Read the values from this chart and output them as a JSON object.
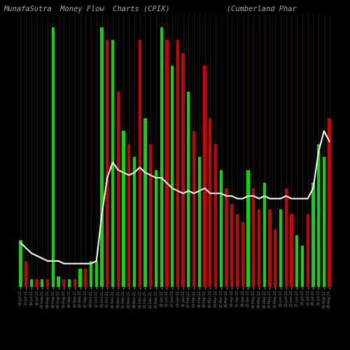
{
  "title": "MunafaSutra  Money Flow  Charts (CPIX)             (Cumberland Phar",
  "background_color": "#000000",
  "title_color": "#aaaaaa",
  "title_fontsize": 7.5,
  "line_color": "#ffffff",
  "green_color": "#00dd00",
  "red_color": "#cc0000",
  "grid_color": "#5a3a00",
  "x_labels": [
    "05-Jul-21",
    "12-Jul-21",
    "19-Jul-21",
    "26-Jul-21",
    "02-Aug-21",
    "09-Aug-21",
    "16-Aug-21",
    "23-Aug-21",
    "30-Aug-21",
    "06-Sep-21",
    "13-Sep-21",
    "20-Sep-21",
    "27-Sep-21",
    "04-Oct-21",
    "11-Oct-21",
    "18-Oct-21",
    "25-Oct-21",
    "01-Nov-21",
    "08-Nov-21",
    "15-Nov-21",
    "22-Nov-21",
    "29-Nov-21",
    "06-Dec-21",
    "13-Dec-21",
    "20-Dec-21",
    "27-Dec-21",
    "03-Jan-22",
    "10-Jan-22",
    "17-Jan-22",
    "24-Jan-22",
    "31-Jan-22",
    "07-Feb-22",
    "14-Feb-22",
    "21-Feb-22",
    "28-Feb-22",
    "07-Mar-22",
    "14-Mar-22",
    "21-Mar-22",
    "28-Mar-22",
    "04-Apr-22",
    "11-Apr-22",
    "18-Apr-22",
    "25-Apr-22",
    "02-May-22",
    "09-May-22",
    "16-May-22",
    "23-May-22",
    "30-May-22",
    "06-Jun-22",
    "13-Jun-22",
    "20-Jun-22",
    "27-Jun-22",
    "04-Jul-22",
    "11-Jul-22",
    "18-Jul-22",
    "25-Jul-22",
    "01-Aug-22",
    "08-Aug-22"
  ],
  "bar_values": [
    0.18,
    0.1,
    0.03,
    0.03,
    0.03,
    0.03,
    1.0,
    0.04,
    0.03,
    0.03,
    0.03,
    0.07,
    0.07,
    0.1,
    0.1,
    1.0,
    0.95,
    0.95,
    0.75,
    0.6,
    0.55,
    0.5,
    0.95,
    0.65,
    0.55,
    0.45,
    1.0,
    0.95,
    0.85,
    0.95,
    0.9,
    0.75,
    0.6,
    0.5,
    0.85,
    0.65,
    0.55,
    0.45,
    0.38,
    0.32,
    0.28,
    0.25,
    0.45,
    0.38,
    0.3,
    0.4,
    0.3,
    0.22,
    0.3,
    0.38,
    0.28,
    0.2,
    0.16,
    0.28,
    0.4,
    0.55,
    0.5,
    0.65
  ],
  "bar_colors": [
    "green",
    "red",
    "green",
    "red",
    "green",
    "red",
    "green",
    "green",
    "red",
    "green",
    "red",
    "green",
    "red",
    "green",
    "green",
    "green",
    "red",
    "green",
    "red",
    "green",
    "red",
    "green",
    "red",
    "green",
    "red",
    "green",
    "green",
    "red",
    "green",
    "red",
    "red",
    "green",
    "red",
    "green",
    "red",
    "red",
    "red",
    "green",
    "red",
    "red",
    "red",
    "red",
    "green",
    "red",
    "red",
    "green",
    "red",
    "red",
    "green",
    "red",
    "red",
    "green",
    "green",
    "red",
    "green",
    "green",
    "green",
    "red"
  ],
  "line_values": [
    0.17,
    0.15,
    0.13,
    0.12,
    0.11,
    0.1,
    0.1,
    0.1,
    0.09,
    0.09,
    0.09,
    0.09,
    0.09,
    0.09,
    0.1,
    0.28,
    0.42,
    0.48,
    0.45,
    0.44,
    0.43,
    0.44,
    0.46,
    0.44,
    0.43,
    0.42,
    0.42,
    0.4,
    0.38,
    0.37,
    0.36,
    0.37,
    0.36,
    0.37,
    0.38,
    0.36,
    0.36,
    0.36,
    0.35,
    0.35,
    0.34,
    0.34,
    0.35,
    0.35,
    0.34,
    0.35,
    0.34,
    0.34,
    0.34,
    0.35,
    0.34,
    0.34,
    0.34,
    0.34,
    0.38,
    0.52,
    0.6,
    0.56
  ],
  "ylim": [
    0,
    1.05
  ],
  "tick_color": "#888888",
  "tick_fontsize": 3.5
}
